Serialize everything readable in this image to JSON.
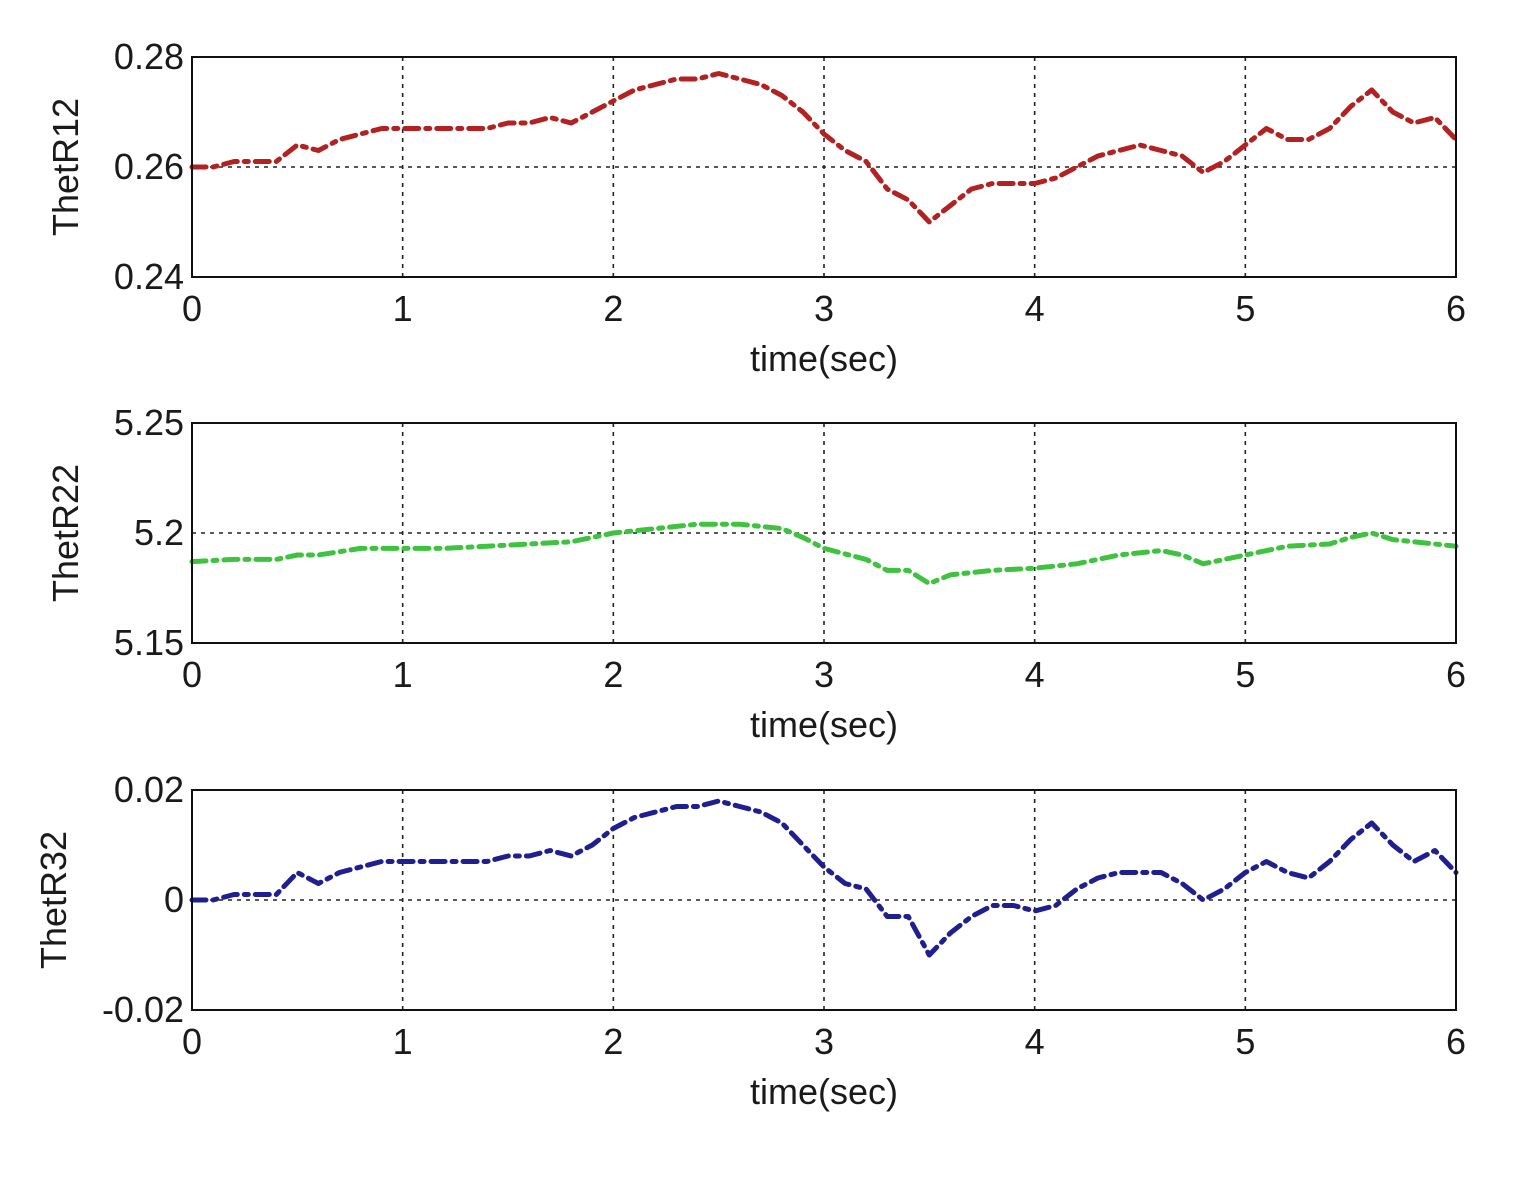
{
  "chart_data": [
    {
      "type": "line",
      "xlabel": "time(sec)",
      "ylabel": "ThetR12",
      "xlim": [
        0,
        6
      ],
      "ylim": [
        0.24,
        0.28
      ],
      "xticks": [
        "0",
        "1",
        "2",
        "3",
        "4",
        "5",
        "6"
      ],
      "yticks": [
        "0.24",
        "0.26",
        "0.28"
      ],
      "grid": true,
      "series": [
        {
          "color": "#b22222",
          "x": [
            0,
            0.1,
            0.2,
            0.3,
            0.4,
            0.5,
            0.6,
            0.7,
            0.8,
            0.9,
            1.0,
            1.1,
            1.2,
            1.3,
            1.4,
            1.5,
            1.6,
            1.7,
            1.8,
            1.9,
            2.0,
            2.1,
            2.2,
            2.3,
            2.4,
            2.5,
            2.6,
            2.7,
            2.8,
            2.9,
            3.0,
            3.1,
            3.2,
            3.3,
            3.4,
            3.5,
            3.6,
            3.7,
            3.8,
            3.9,
            4.0,
            4.1,
            4.2,
            4.3,
            4.4,
            4.5,
            4.6,
            4.7,
            4.8,
            4.9,
            5.0,
            5.1,
            5.2,
            5.3,
            5.4,
            5.5,
            5.6,
            5.7,
            5.8,
            5.9,
            6.0
          ],
          "y": [
            0.26,
            0.26,
            0.261,
            0.261,
            0.261,
            0.264,
            0.263,
            0.265,
            0.266,
            0.267,
            0.267,
            0.267,
            0.267,
            0.267,
            0.267,
            0.268,
            0.268,
            0.269,
            0.268,
            0.27,
            0.272,
            0.274,
            0.275,
            0.276,
            0.276,
            0.277,
            0.276,
            0.275,
            0.273,
            0.27,
            0.266,
            0.263,
            0.261,
            0.256,
            0.254,
            0.25,
            0.253,
            0.256,
            0.257,
            0.257,
            0.257,
            0.258,
            0.26,
            0.262,
            0.263,
            0.264,
            0.263,
            0.262,
            0.259,
            0.261,
            0.264,
            0.267,
            0.265,
            0.265,
            0.267,
            0.271,
            0.274,
            0.27,
            0.268,
            0.269,
            0.265
          ]
        }
      ]
    },
    {
      "type": "line",
      "xlabel": "time(sec)",
      "ylabel": "ThetR22",
      "xlim": [
        0,
        6
      ],
      "ylim": [
        5.15,
        5.25
      ],
      "xticks": [
        "0",
        "1",
        "2",
        "3",
        "4",
        "5",
        "6"
      ],
      "yticks": [
        "5.15",
        "5.2",
        "5.25"
      ],
      "grid": true,
      "series": [
        {
          "color": "#3fc23f",
          "x": [
            0,
            0.2,
            0.4,
            0.5,
            0.6,
            0.8,
            1.0,
            1.2,
            1.4,
            1.6,
            1.8,
            1.9,
            2.0,
            2.2,
            2.4,
            2.6,
            2.8,
            2.9,
            3.0,
            3.2,
            3.3,
            3.4,
            3.5,
            3.6,
            3.8,
            4.0,
            4.2,
            4.4,
            4.6,
            4.7,
            4.8,
            5.0,
            5.2,
            5.4,
            5.5,
            5.6,
            5.7,
            5.8,
            6.0
          ],
          "y": [
            5.187,
            5.188,
            5.188,
            5.19,
            5.19,
            5.193,
            5.193,
            5.193,
            5.194,
            5.195,
            5.196,
            5.198,
            5.2,
            5.202,
            5.204,
            5.204,
            5.202,
            5.198,
            5.193,
            5.188,
            5.183,
            5.183,
            5.177,
            5.181,
            5.183,
            5.184,
            5.186,
            5.19,
            5.192,
            5.19,
            5.186,
            5.19,
            5.194,
            5.195,
            5.198,
            5.2,
            5.197,
            5.196,
            5.194
          ]
        }
      ]
    },
    {
      "type": "line",
      "xlabel": "time(sec)",
      "ylabel": "ThetR32",
      "xlim": [
        0,
        6
      ],
      "ylim": [
        -0.02,
        0.02
      ],
      "xticks": [
        "0",
        "1",
        "2",
        "3",
        "4",
        "5",
        "6"
      ],
      "yticks": [
        "-0.02",
        "0",
        "0.02"
      ],
      "grid": true,
      "series": [
        {
          "color": "#1f1f8f",
          "x": [
            0,
            0.1,
            0.2,
            0.3,
            0.4,
            0.5,
            0.6,
            0.7,
            0.8,
            0.9,
            1.0,
            1.1,
            1.2,
            1.3,
            1.4,
            1.5,
            1.6,
            1.7,
            1.8,
            1.9,
            2.0,
            2.1,
            2.2,
            2.3,
            2.4,
            2.5,
            2.6,
            2.7,
            2.8,
            2.9,
            3.0,
            3.1,
            3.2,
            3.3,
            3.4,
            3.5,
            3.6,
            3.7,
            3.8,
            3.9,
            4.0,
            4.1,
            4.2,
            4.3,
            4.4,
            4.5,
            4.6,
            4.7,
            4.8,
            4.9,
            5.0,
            5.1,
            5.2,
            5.3,
            5.4,
            5.5,
            5.6,
            5.7,
            5.8,
            5.9,
            6.0
          ],
          "y": [
            0.0,
            0.0,
            0.001,
            0.001,
            0.001,
            0.005,
            0.003,
            0.005,
            0.006,
            0.007,
            0.007,
            0.007,
            0.007,
            0.007,
            0.007,
            0.008,
            0.008,
            0.009,
            0.008,
            0.01,
            0.013,
            0.015,
            0.016,
            0.017,
            0.017,
            0.018,
            0.017,
            0.016,
            0.014,
            0.01,
            0.006,
            0.003,
            0.002,
            -0.003,
            -0.003,
            -0.01,
            -0.006,
            -0.003,
            -0.001,
            -0.001,
            -0.002,
            -0.001,
            0.002,
            0.004,
            0.005,
            0.005,
            0.005,
            0.003,
            0.0,
            0.002,
            0.005,
            0.007,
            0.005,
            0.004,
            0.007,
            0.011,
            0.014,
            0.01,
            0.007,
            0.009,
            0.005
          ]
        }
      ]
    }
  ]
}
